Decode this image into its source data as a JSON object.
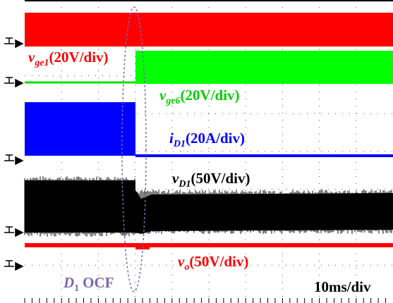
{
  "traces": [
    {
      "symbol": "v",
      "sub": "ge1",
      "scale": "(20V/div)"
    },
    {
      "symbol": "v",
      "sub": "ge6",
      "scale": "(20V/div)"
    },
    {
      "symbol": "i",
      "sub": "D1",
      "scale": "(20A/div)"
    },
    {
      "symbol": "v",
      "sub": "D1",
      "scale": "(50V/div)"
    },
    {
      "symbol": "v",
      "sub": "o",
      "scale": "(50V/div)"
    }
  ],
  "fault": {
    "device": "D",
    "sub": "1",
    "text": "OCF"
  },
  "timebase": "10ms/div"
}
